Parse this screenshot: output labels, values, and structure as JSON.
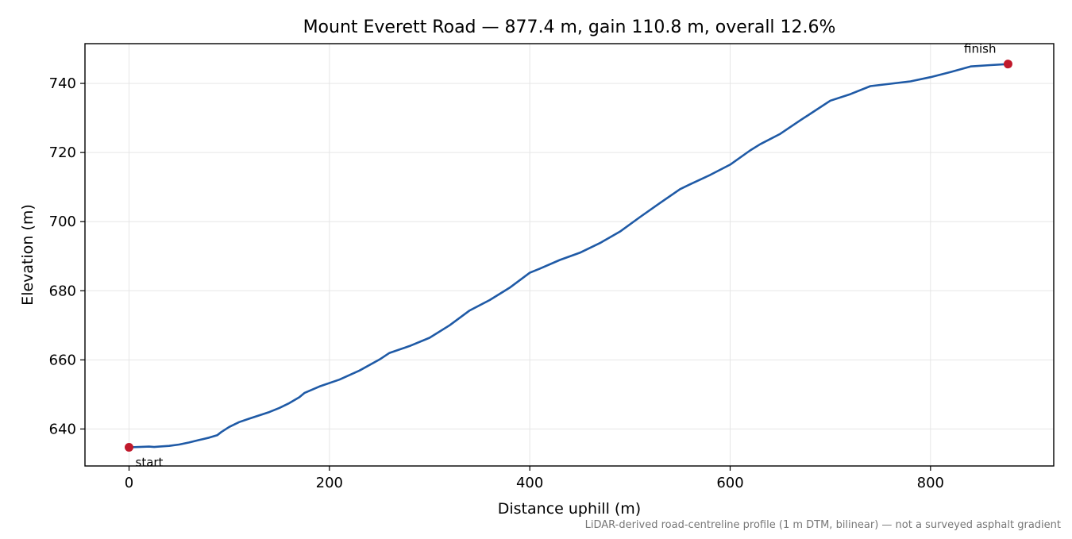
{
  "chart_data": {
    "type": "line",
    "title": "Mount Everett Road — 877.4 m, gain 110.8 m, overall 12.6%",
    "xlabel": "Distance uphill (m)",
    "ylabel": "Elevation (m)",
    "xlim": [
      -44,
      923
    ],
    "ylim": [
      629.3,
      751.5
    ],
    "xticks": [
      0,
      200,
      400,
      600,
      800
    ],
    "yticks": [
      640,
      660,
      680,
      700,
      720,
      740
    ],
    "grid": true,
    "footnote": "LiDAR-derived road-centreline profile (1 m DTM, bilinear) — not a surveyed asphalt gradient",
    "colors": {
      "line": "#1f5aa6",
      "marker": "#c0192b",
      "grid": "#e6e6e6",
      "footnote": "#777777"
    },
    "series": [
      {
        "x": [
          0,
          10,
          20,
          25,
          30,
          40,
          50,
          60,
          70,
          80,
          88,
          92,
          100,
          110,
          120,
          140,
          150,
          160,
          170,
          175,
          190,
          210,
          230,
          250,
          260,
          280,
          300,
          320,
          340,
          360,
          380,
          400,
          410,
          430,
          450,
          470,
          490,
          510,
          530,
          550,
          560,
          580,
          600,
          620,
          630,
          650,
          670,
          680,
          700,
          720,
          740,
          760,
          780,
          800,
          820,
          840,
          860,
          877.4
        ],
        "y": [
          634.7,
          634.8,
          634.9,
          634.8,
          634.9,
          635.1,
          635.5,
          636.1,
          636.8,
          637.5,
          638.2,
          639.1,
          640.6,
          642.0,
          643.0,
          644.9,
          646.1,
          647.5,
          649.2,
          650.4,
          652.3,
          654.3,
          656.9,
          660.1,
          662.0,
          664.0,
          666.4,
          670.0,
          674.3,
          677.3,
          680.9,
          685.2,
          686.4,
          688.9,
          691.0,
          693.8,
          697.1,
          701.3,
          705.4,
          709.4,
          710.8,
          713.5,
          716.5,
          720.6,
          722.4,
          725.4,
          729.3,
          731.2,
          735.0,
          736.9,
          739.2,
          739.9,
          740.6,
          741.8,
          743.3,
          744.9,
          745.3,
          745.6
        ]
      }
    ],
    "annotations": [
      {
        "label": "start",
        "x": 0,
        "y": 634.7
      },
      {
        "label": "finish",
        "x": 877.4,
        "y": 745.6
      }
    ]
  }
}
